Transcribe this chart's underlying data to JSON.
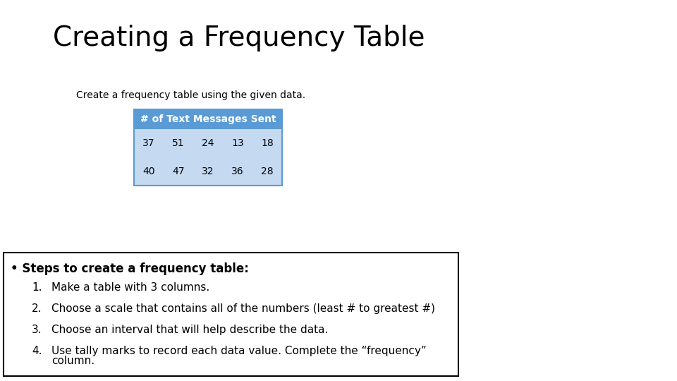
{
  "title": "Creating a Frequency Table",
  "subtitle": "Create a frequency table using the given data.",
  "table_header": "# of Text Messages Sent",
  "table_header_bg": "#5b9bd5",
  "table_header_text_color": "#ffffff",
  "table_row_bg": "#c5d9f1",
  "table_row1": [
    "37",
    "51",
    "24",
    "13",
    "18"
  ],
  "table_row2": [
    "40",
    "47",
    "32",
    "36",
    "28"
  ],
  "table_border_color": "#5b9bd5",
  "bullet_header": "• Steps to create a frequency table:",
  "steps": [
    "Make a table with 3 columns.",
    "Choose a scale that contains all of the numbers (least # to greatest #)",
    "Choose an interval that will help describe the data.",
    "Use tally marks to record each data value. Complete the “frequency”\ncolumn."
  ],
  "bg_color": "#ffffff",
  "title_fontsize": 28,
  "subtitle_fontsize": 10,
  "table_fontsize": 10,
  "steps_header_fontsize": 12,
  "steps_fontsize": 11
}
